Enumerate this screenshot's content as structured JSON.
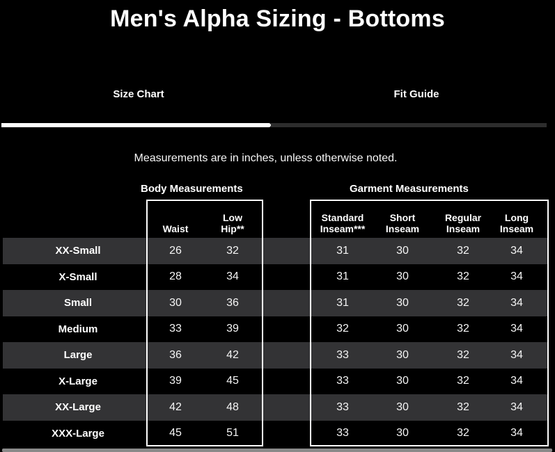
{
  "title": "Men's Alpha Sizing - Bottoms",
  "tabs": [
    {
      "label": "Size Chart",
      "active": true
    },
    {
      "label": "Fit Guide",
      "active": false
    }
  ],
  "note": "Measurements are in inches, unless otherwise noted.",
  "table": {
    "groups": [
      {
        "label": "Body Measurements",
        "columns": [
          "Waist",
          "Low\nHip**"
        ]
      },
      {
        "label": "Garment Measurements",
        "columns": [
          "Standard\nInseam***",
          "Short\nInseam",
          "Regular\nInseam",
          "Long\nInseam"
        ]
      }
    ],
    "rows": [
      {
        "size": "XX-Small",
        "body": [
          "26",
          "32"
        ],
        "garment": [
          "31",
          "30",
          "32",
          "34"
        ]
      },
      {
        "size": "X-Small",
        "body": [
          "28",
          "34"
        ],
        "garment": [
          "31",
          "30",
          "32",
          "34"
        ]
      },
      {
        "size": "Small",
        "body": [
          "30",
          "36"
        ],
        "garment": [
          "31",
          "30",
          "32",
          "34"
        ]
      },
      {
        "size": "Medium",
        "body": [
          "33",
          "39"
        ],
        "garment": [
          "32",
          "30",
          "32",
          "34"
        ]
      },
      {
        "size": "Large",
        "body": [
          "36",
          "42"
        ],
        "garment": [
          "33",
          "30",
          "32",
          "34"
        ]
      },
      {
        "size": "X-Large",
        "body": [
          "39",
          "45"
        ],
        "garment": [
          "33",
          "30",
          "32",
          "34"
        ]
      },
      {
        "size": "XX-Large",
        "body": [
          "42",
          "48"
        ],
        "garment": [
          "33",
          "30",
          "32",
          "34"
        ]
      },
      {
        "size": "XXX-Large",
        "body": [
          "45",
          "51"
        ],
        "garment": [
          "33",
          "30",
          "32",
          "34"
        ]
      }
    ]
  },
  "colors": {
    "background": "#000000",
    "text": "#ffffff",
    "row_stripe": "#333335",
    "active_tab_indicator": "#ffffff",
    "inactive_tab_indicator": "#2d2d2d",
    "table_border": "#ffffff",
    "scrollbar": "#8a8a8a"
  }
}
